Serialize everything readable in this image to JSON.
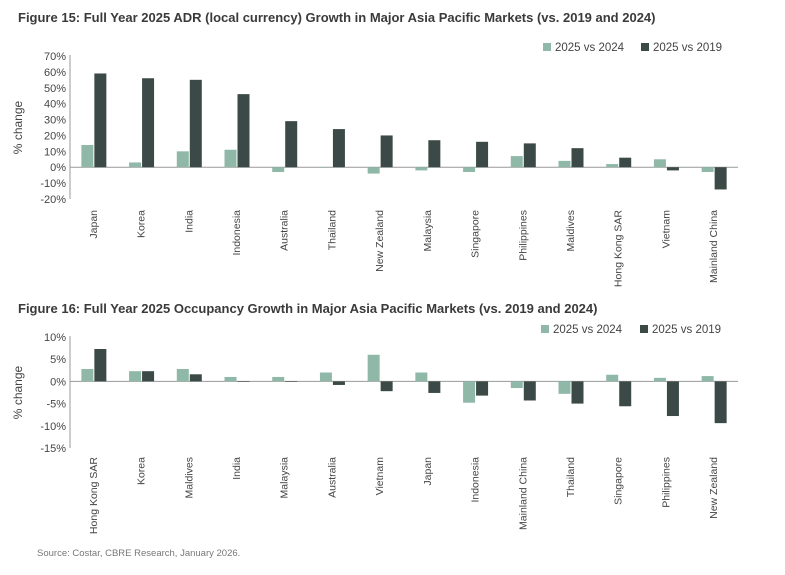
{
  "colors": {
    "light": "#8fb8a8",
    "dark": "#3b4a47",
    "axis": "#999999",
    "text": "#444444"
  },
  "chart_data": [
    {
      "type": "bar",
      "title": "Figure 15: Full Year 2025 ADR (local currency) Growth in Major Asia Pacific Markets (vs. 2019 and 2024)",
      "ylabel": "% change",
      "xlabel": "",
      "ylim": [
        -20,
        70
      ],
      "yticks": [
        -20,
        -10,
        0,
        10,
        20,
        30,
        40,
        50,
        60,
        70
      ],
      "ytick_labels": [
        "-20%",
        "-10%",
        "0%",
        "10%",
        "20%",
        "30%",
        "40%",
        "50%",
        "60%",
        "70%"
      ],
      "categories": [
        "Japan",
        "Korea",
        "India",
        "Indonesia",
        "Australia",
        "Thailand",
        "New Zealand",
        "Malaysia",
        "Singapore",
        "Philippines",
        "Maldives",
        "Hong Kong SAR",
        "Vietnam",
        "Mainland China"
      ],
      "series": [
        {
          "name": "2025 vs 2024",
          "values": [
            14,
            3,
            10,
            11,
            -3,
            0,
            -4,
            -2,
            -3,
            7,
            4,
            2,
            5,
            -3
          ]
        },
        {
          "name": "2025 vs 2019",
          "values": [
            59,
            56,
            55,
            46,
            29,
            24,
            20,
            17,
            16,
            15,
            12,
            6,
            -2,
            -14
          ]
        }
      ]
    },
    {
      "type": "bar",
      "title": "Figure 16: Full Year 2025 Occupancy Growth in Major Asia Pacific Markets (vs. 2019 and 2024)",
      "ylabel": "% change",
      "xlabel": "",
      "ylim": [
        -15,
        10
      ],
      "yticks": [
        -15,
        -10,
        -5,
        0,
        5,
        10
      ],
      "ytick_labels": [
        "-15%",
        "-10%",
        "-5%",
        "0%",
        "5%",
        "10%"
      ],
      "categories": [
        "Hong Kong SAR",
        "Korea",
        "Maldives",
        "India",
        "Malaysia",
        "Australia",
        "Vietnam",
        "Japan",
        "Indonesia",
        "Mainland China",
        "Thailand",
        "Singapore",
        "Philippines",
        "New Zealand"
      ],
      "series": [
        {
          "name": "2025 vs 2024",
          "values": [
            2.8,
            2.3,
            2.8,
            1.0,
            1.0,
            2.0,
            6.0,
            2.0,
            -4.8,
            -1.5,
            -2.8,
            1.5,
            0.8,
            1.2
          ]
        },
        {
          "name": "2025 vs 2019",
          "values": [
            7.3,
            2.3,
            1.6,
            0,
            0,
            -0.8,
            -2.2,
            -2.6,
            -3.2,
            -4.3,
            -5.0,
            -5.6,
            -7.8,
            -9.4
          ]
        }
      ]
    }
  ],
  "source": "Source: Costar, CBRE Research, January 2026."
}
